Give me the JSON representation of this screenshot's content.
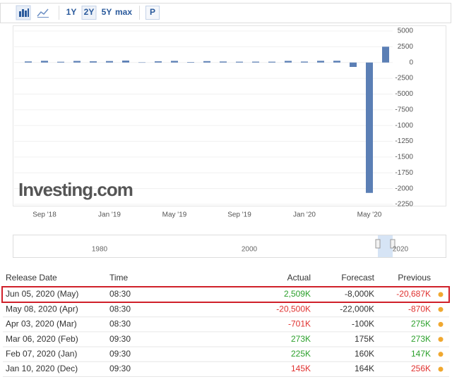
{
  "toolbar": {
    "ranges": [
      "1Y",
      "2Y",
      "5Y",
      "max"
    ],
    "selected": "2Y",
    "extra": "P"
  },
  "chart_data": {
    "type": "bar",
    "watermark": "Investing.com",
    "color": "#5b7fb5",
    "categories": [
      null,
      "Sep '18",
      null,
      null,
      null,
      "Jan '19",
      null,
      null,
      null,
      "May '19",
      null,
      null,
      null,
      "Sep '19",
      null,
      null,
      null,
      "Jan '20",
      null,
      null,
      null,
      "May '20",
      null
    ],
    "values": [
      17,
      27,
      12,
      25,
      19,
      23,
      31,
      2,
      19,
      26,
      8,
      22,
      16,
      13,
      14,
      13,
      26,
      15,
      27,
      28,
      -70.1,
      -2068.7,
      250.9
    ],
    "ylim": [
      500,
      -2250
    ],
    "yticks": [
      {
        "value": 500,
        "label": "5000"
      },
      {
        "value": 250,
        "label": "2500"
      },
      0,
      {
        "value": -250,
        "label": "-2500"
      },
      {
        "value": -500,
        "label": "-5000"
      },
      {
        "value": -750,
        "label": "-7500"
      },
      -1000,
      -1250,
      -1500,
      -1750,
      -2000,
      -2250
    ],
    "grid": true
  },
  "navigator": {
    "labels": [
      "1980",
      "2000",
      "2020"
    ]
  },
  "table": {
    "headers": [
      "Release Date",
      "Time",
      "Actual",
      "Forecast",
      "Previous"
    ],
    "rows": [
      {
        "date": "Jun 05, 2020 (May)",
        "time": "08:30",
        "actual": "2,509K",
        "forecast": "-8,000K",
        "previous": "-20,687K",
        "actual_color": "#2ca02c",
        "previous_color": "#e0312f",
        "highlight": true
      },
      {
        "date": "May 08, 2020 (Apr)",
        "time": "08:30",
        "actual": "-20,500K",
        "forecast": "-22,000K",
        "previous": "-870K",
        "actual_color": "#e0312f",
        "previous_color": "#e0312f",
        "highlight": false
      },
      {
        "date": "Apr 03, 2020 (Mar)",
        "time": "08:30",
        "actual": "-701K",
        "forecast": "-100K",
        "previous": "275K",
        "actual_color": "#e0312f",
        "previous_color": "#2ca02c",
        "highlight": false
      },
      {
        "date": "Mar 06, 2020 (Feb)",
        "time": "09:30",
        "actual": "273K",
        "forecast": "175K",
        "previous": "273K",
        "actual_color": "#2ca02c",
        "previous_color": "#2ca02c",
        "highlight": false
      },
      {
        "date": "Feb 07, 2020 (Jan)",
        "time": "09:30",
        "actual": "225K",
        "forecast": "160K",
        "previous": "147K",
        "actual_color": "#2ca02c",
        "previous_color": "#2ca02c",
        "highlight": false
      },
      {
        "date": "Jan 10, 2020 (Dec)",
        "time": "09:30",
        "actual": "145K",
        "forecast": "164K",
        "previous": "256K",
        "actual_color": "#e0312f",
        "previous_color": "#e0312f",
        "highlight": false
      }
    ]
  }
}
